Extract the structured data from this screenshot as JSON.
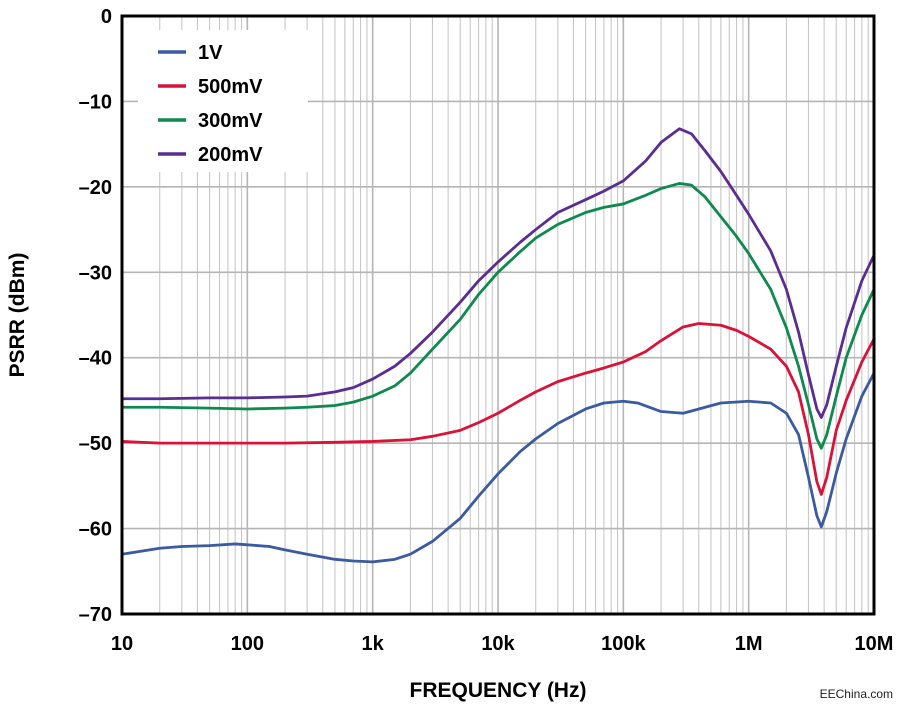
{
  "chart_data": {
    "type": "line",
    "xlabel": "FREQUENCY (Hz)",
    "ylabel": "PSRR (dBm)",
    "x_scale": "log",
    "xlim": [
      10,
      10000000
    ],
    "ylim": [
      -70,
      0
    ],
    "grid": true,
    "legend_position": "top-left",
    "x_tick_labels": [
      {
        "value": 10,
        "label": "10"
      },
      {
        "value": 100,
        "label": "100"
      },
      {
        "value": 1000,
        "label": "1k"
      },
      {
        "value": 10000,
        "label": "10k"
      },
      {
        "value": 100000,
        "label": "100k"
      },
      {
        "value": 1000000,
        "label": "1M"
      },
      {
        "value": 10000000,
        "label": "10M"
      }
    ],
    "y_tick_labels": [
      {
        "value": 0,
        "label": "0"
      },
      {
        "value": -10,
        "label": "–10"
      },
      {
        "value": -20,
        "label": "–20"
      },
      {
        "value": -30,
        "label": "–30"
      },
      {
        "value": -40,
        "label": "–40"
      },
      {
        "value": -50,
        "label": "–50"
      },
      {
        "value": -60,
        "label": "–60"
      },
      {
        "value": -70,
        "label": "–70"
      }
    ],
    "series": [
      {
        "name": "1V",
        "color": "#3b5aa0",
        "points": [
          [
            10,
            -63.0
          ],
          [
            15,
            -62.6
          ],
          [
            20,
            -62.3
          ],
          [
            30,
            -62.1
          ],
          [
            50,
            -62.0
          ],
          [
            80,
            -61.8
          ],
          [
            100,
            -61.9
          ],
          [
            150,
            -62.1
          ],
          [
            200,
            -62.5
          ],
          [
            300,
            -63.0
          ],
          [
            500,
            -63.6
          ],
          [
            700,
            -63.8
          ],
          [
            1000,
            -63.9
          ],
          [
            1500,
            -63.6
          ],
          [
            2000,
            -63.0
          ],
          [
            3000,
            -61.5
          ],
          [
            5000,
            -58.8
          ],
          [
            7000,
            -56.2
          ],
          [
            10000,
            -53.6
          ],
          [
            15000,
            -51.0
          ],
          [
            20000,
            -49.5
          ],
          [
            30000,
            -47.7
          ],
          [
            50000,
            -46.0
          ],
          [
            70000,
            -45.3
          ],
          [
            100000,
            -45.1
          ],
          [
            130000,
            -45.3
          ],
          [
            200000,
            -46.3
          ],
          [
            300000,
            -46.5
          ],
          [
            400000,
            -46.0
          ],
          [
            600000,
            -45.3
          ],
          [
            1000000,
            -45.1
          ],
          [
            1500000,
            -45.3
          ],
          [
            2000000,
            -46.5
          ],
          [
            2500000,
            -49.0
          ],
          [
            3000000,
            -54.0
          ],
          [
            3500000,
            -58.5
          ],
          [
            3800000,
            -59.8
          ],
          [
            4200000,
            -58.0
          ],
          [
            5000000,
            -53.5
          ],
          [
            6000000,
            -49.5
          ],
          [
            8000000,
            -44.5
          ],
          [
            10000000,
            -41.8
          ]
        ]
      },
      {
        "name": "500mV",
        "color": "#d9123a",
        "points": [
          [
            10,
            -49.8
          ],
          [
            20,
            -50.0
          ],
          [
            50,
            -50.0
          ],
          [
            100,
            -50.0
          ],
          [
            200,
            -50.0
          ],
          [
            500,
            -49.9
          ],
          [
            1000,
            -49.8
          ],
          [
            2000,
            -49.6
          ],
          [
            3000,
            -49.2
          ],
          [
            5000,
            -48.5
          ],
          [
            7000,
            -47.6
          ],
          [
            10000,
            -46.5
          ],
          [
            15000,
            -45.0
          ],
          [
            20000,
            -44.0
          ],
          [
            30000,
            -42.8
          ],
          [
            50000,
            -41.8
          ],
          [
            70000,
            -41.2
          ],
          [
            100000,
            -40.5
          ],
          [
            150000,
            -39.3
          ],
          [
            200000,
            -38.0
          ],
          [
            300000,
            -36.4
          ],
          [
            400000,
            -36.0
          ],
          [
            600000,
            -36.2
          ],
          [
            800000,
            -36.8
          ],
          [
            1000000,
            -37.5
          ],
          [
            1500000,
            -39.0
          ],
          [
            2000000,
            -41.0
          ],
          [
            2500000,
            -44.0
          ],
          [
            3000000,
            -49.0
          ],
          [
            3500000,
            -54.5
          ],
          [
            3800000,
            -56.0
          ],
          [
            4200000,
            -54.0
          ],
          [
            5000000,
            -48.5
          ],
          [
            6000000,
            -45.0
          ],
          [
            8000000,
            -40.5
          ],
          [
            10000000,
            -37.8
          ]
        ]
      },
      {
        "name": "300mV",
        "color": "#0e8a4f",
        "points": [
          [
            10,
            -45.8
          ],
          [
            20,
            -45.8
          ],
          [
            50,
            -45.9
          ],
          [
            100,
            -46.0
          ],
          [
            200,
            -45.9
          ],
          [
            300,
            -45.8
          ],
          [
            500,
            -45.6
          ],
          [
            700,
            -45.2
          ],
          [
            1000,
            -44.5
          ],
          [
            1500,
            -43.3
          ],
          [
            2000,
            -41.8
          ],
          [
            3000,
            -39.0
          ],
          [
            5000,
            -35.5
          ],
          [
            7000,
            -32.6
          ],
          [
            10000,
            -30.0
          ],
          [
            15000,
            -27.6
          ],
          [
            20000,
            -26.0
          ],
          [
            30000,
            -24.4
          ],
          [
            50000,
            -23.0
          ],
          [
            70000,
            -22.4
          ],
          [
            100000,
            -22.0
          ],
          [
            150000,
            -21.0
          ],
          [
            200000,
            -20.2
          ],
          [
            280000,
            -19.6
          ],
          [
            350000,
            -19.8
          ],
          [
            450000,
            -21.2
          ],
          [
            600000,
            -23.5
          ],
          [
            800000,
            -25.8
          ],
          [
            1000000,
            -27.8
          ],
          [
            1500000,
            -32.0
          ],
          [
            2000000,
            -36.5
          ],
          [
            2500000,
            -41.0
          ],
          [
            3000000,
            -45.5
          ],
          [
            3500000,
            -49.5
          ],
          [
            3800000,
            -50.6
          ],
          [
            4200000,
            -49.0
          ],
          [
            5000000,
            -44.5
          ],
          [
            6000000,
            -40.0
          ],
          [
            8000000,
            -35.0
          ],
          [
            10000000,
            -32.0
          ]
        ]
      },
      {
        "name": "200mV",
        "color": "#5a2d91",
        "points": [
          [
            10,
            -44.8
          ],
          [
            20,
            -44.8
          ],
          [
            50,
            -44.7
          ],
          [
            100,
            -44.7
          ],
          [
            200,
            -44.6
          ],
          [
            300,
            -44.5
          ],
          [
            500,
            -44.0
          ],
          [
            700,
            -43.5
          ],
          [
            1000,
            -42.5
          ],
          [
            1500,
            -41.0
          ],
          [
            2000,
            -39.5
          ],
          [
            3000,
            -37.0
          ],
          [
            5000,
            -33.5
          ],
          [
            7000,
            -31.0
          ],
          [
            10000,
            -28.8
          ],
          [
            15000,
            -26.5
          ],
          [
            20000,
            -25.0
          ],
          [
            30000,
            -23.0
          ],
          [
            50000,
            -21.5
          ],
          [
            70000,
            -20.5
          ],
          [
            100000,
            -19.3
          ],
          [
            150000,
            -17.0
          ],
          [
            200000,
            -14.8
          ],
          [
            280000,
            -13.2
          ],
          [
            350000,
            -13.8
          ],
          [
            450000,
            -15.8
          ],
          [
            600000,
            -18.2
          ],
          [
            800000,
            -21.0
          ],
          [
            1000000,
            -23.2
          ],
          [
            1500000,
            -27.5
          ],
          [
            2000000,
            -32.0
          ],
          [
            2500000,
            -37.0
          ],
          [
            3000000,
            -42.0
          ],
          [
            3500000,
            -46.0
          ],
          [
            3800000,
            -47.0
          ],
          [
            4200000,
            -45.5
          ],
          [
            5000000,
            -41.0
          ],
          [
            6000000,
            -36.5
          ],
          [
            8000000,
            -31.0
          ],
          [
            10000000,
            -28.0
          ]
        ]
      }
    ]
  },
  "watermark": "EEChina.com"
}
